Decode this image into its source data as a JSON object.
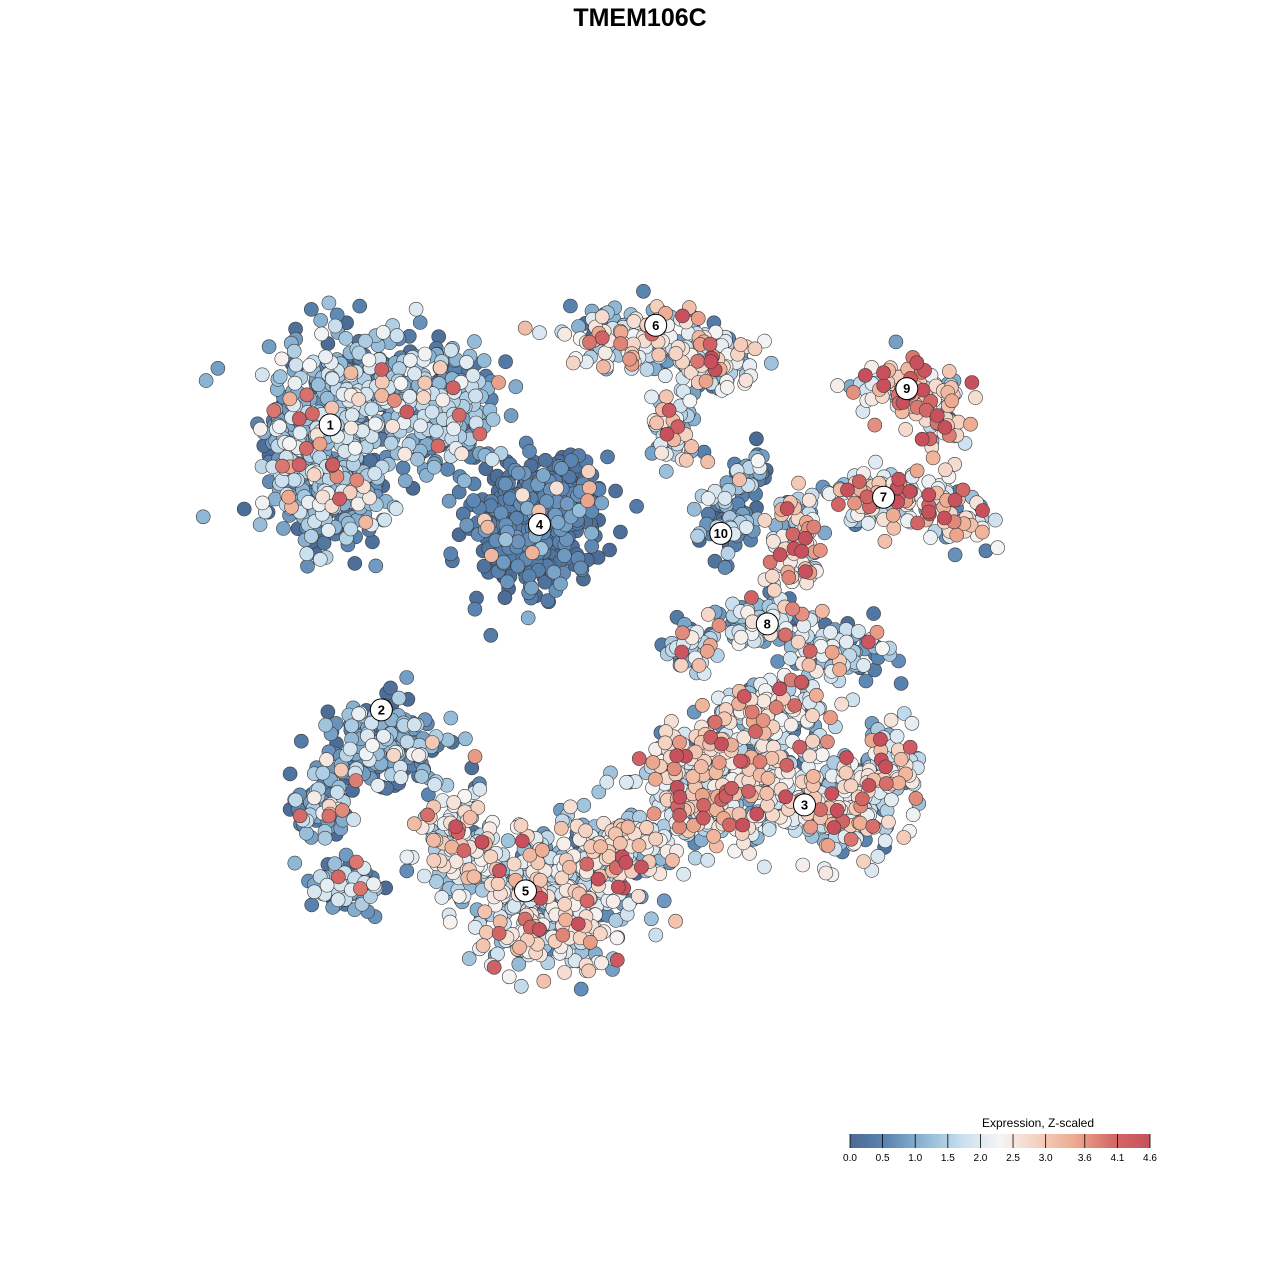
{
  "chart_data": {
    "type": "scatter",
    "title": "TMEM106C",
    "xlabel": "",
    "ylabel": "",
    "grid": false,
    "color_scale": {
      "title": "Expression, Z-scaled",
      "min": 0.0,
      "max": 4.6,
      "ticks": [
        "0.0",
        "0.5",
        "1.0",
        "1.5",
        "2.0",
        "2.5",
        "3.0",
        "3.6",
        "4.1",
        "4.6"
      ],
      "tick_values": [
        0.0,
        0.5,
        1.0,
        1.5,
        2.0,
        2.5,
        3.0,
        3.6,
        4.1,
        4.6
      ],
      "colors": [
        "#4a6a94",
        "#5b86b3",
        "#8fb8d6",
        "#c9dfee",
        "#f5f5f5",
        "#f5d1bf",
        "#eda98f",
        "#d46a68",
        "#c8505c"
      ],
      "legend_position": "bottom-right"
    },
    "x_range": [
      0,
      100
    ],
    "y_range": [
      0,
      100
    ],
    "clusters": [
      {
        "id": "1",
        "label_xy": [
          14.0,
          73.5
        ],
        "n": 900,
        "blobs": [
          [
            17.0,
            77.0,
            8.5,
            6.0
          ],
          [
            14.0,
            66.0,
            6.0,
            5.5
          ],
          [
            27.0,
            75.0,
            4.5,
            6.5
          ],
          [
            9.5,
            72.0,
            3.0,
            4.0
          ]
        ],
        "expr_mean": 1.0,
        "expr_sd": 0.7
      },
      {
        "id": "2",
        "label_xy": [
          19.5,
          42.0
        ],
        "n": 360,
        "blobs": [
          [
            20.0,
            38.0,
            6.0,
            4.5
          ],
          [
            13.0,
            31.0,
            2.5,
            3.5
          ],
          [
            16.0,
            22.5,
            4.0,
            2.5
          ]
        ],
        "expr_mean": 0.8,
        "expr_sd": 0.7
      },
      {
        "id": "3",
        "label_xy": [
          65.0,
          31.5
        ],
        "n": 850,
        "blobs": [
          [
            56.0,
            34.0,
            8.0,
            6.5
          ],
          [
            69.5,
            31.5,
            5.5,
            5.5
          ],
          [
            74.5,
            36.0,
            3.0,
            3.5
          ],
          [
            62.0,
            42.0,
            5.0,
            3.0
          ]
        ],
        "expr_mean": 1.9,
        "expr_sd": 0.9
      },
      {
        "id": "4",
        "label_xy": [
          36.5,
          62.5
        ],
        "n": 520,
        "blobs": [
          [
            35.5,
            62.0,
            5.5,
            6.0
          ],
          [
            40.0,
            66.0,
            3.0,
            3.0
          ]
        ],
        "expr_mean": 0.2,
        "expr_sd": 0.35
      },
      {
        "id": "5",
        "label_xy": [
          35.0,
          22.0
        ],
        "n": 700,
        "blobs": [
          [
            37.5,
            20.5,
            8.0,
            6.5
          ],
          [
            28.0,
            27.0,
            4.0,
            5.5
          ],
          [
            45.0,
            27.0,
            5.0,
            4.0
          ]
        ],
        "expr_mean": 1.8,
        "expr_sd": 0.85
      },
      {
        "id": "6",
        "label_xy": [
          49.0,
          84.5
        ],
        "n": 320,
        "blobs": [
          [
            47.0,
            83.0,
            7.0,
            3.0
          ],
          [
            55.0,
            80.5,
            4.0,
            3.0
          ],
          [
            51.0,
            73.5,
            2.0,
            3.5
          ]
        ],
        "expr_mean": 1.7,
        "expr_sd": 0.9
      },
      {
        "id": "7",
        "label_xy": [
          73.5,
          65.5
        ],
        "n": 260,
        "blobs": [
          [
            74.0,
            65.5,
            7.0,
            3.0
          ],
          [
            82.0,
            63.0,
            3.5,
            2.5
          ],
          [
            64.0,
            60.0,
            3.0,
            5.0
          ]
        ],
        "expr_mean": 2.2,
        "expr_sd": 1.0
      },
      {
        "id": "8",
        "label_xy": [
          61.0,
          51.5
        ],
        "n": 230,
        "blobs": [
          [
            69.0,
            48.5,
            4.0,
            3.0
          ],
          [
            60.0,
            51.5,
            4.5,
            2.5
          ],
          [
            53.0,
            49.0,
            2.5,
            2.5
          ]
        ],
        "expr_mean": 1.2,
        "expr_sd": 0.9
      },
      {
        "id": "9",
        "label_xy": [
          76.0,
          77.5
        ],
        "n": 150,
        "blobs": [
          [
            76.0,
            77.5,
            4.5,
            2.5
          ],
          [
            80.0,
            74.0,
            2.0,
            2.5
          ]
        ],
        "expr_mean": 2.4,
        "expr_sd": 1.0
      },
      {
        "id": "10",
        "label_xy": [
          56.0,
          61.5
        ],
        "n": 120,
        "blobs": [
          [
            57.0,
            63.0,
            3.0,
            4.0
          ],
          [
            59.0,
            68.5,
            2.5,
            2.0
          ]
        ],
        "expr_mean": 0.6,
        "expr_sd": 0.7
      }
    ]
  }
}
